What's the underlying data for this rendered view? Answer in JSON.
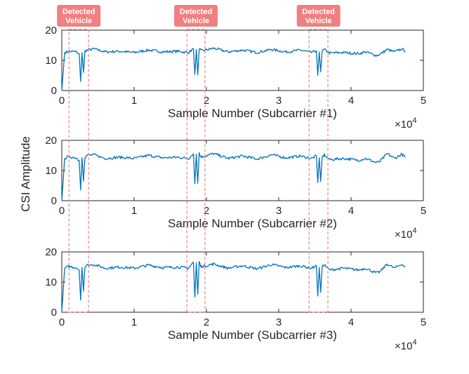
{
  "figure": {
    "ylabel": "CSI Amplitude",
    "multiplier_base": "×10",
    "multiplier_exp": "4",
    "annotation_label_line1": "Detected",
    "annotation_label_line2": "Vehicle"
  },
  "colors": {
    "series": "#0072BD",
    "annotation": "#F08080",
    "axis": "#262626"
  },
  "chart_data": [
    {
      "type": "line",
      "xlabel": "Sample Number (Subcarrier #1)",
      "ylabel": "CSI Amplitude",
      "xlim": [
        0,
        50000
      ],
      "ylim": [
        0,
        20
      ],
      "x_ticks": [
        0,
        10000,
        20000,
        30000,
        40000,
        50000
      ],
      "x_tick_labels": [
        "0",
        "1",
        "2",
        "3",
        "4",
        "5"
      ],
      "y_ticks": [
        0,
        10,
        20
      ],
      "y_tick_labels": [
        "0",
        "10",
        "20"
      ],
      "x_multiplier": "×10^4",
      "series": [
        {
          "baseline": 13.0,
          "x": [
            0,
            400,
            1000,
            2000,
            2400,
            2600,
            2800,
            3000,
            3200,
            3500,
            4500,
            6000,
            8000,
            10000,
            12000,
            14000,
            16000,
            17500,
            18200,
            18400,
            18600,
            18800,
            19000,
            19200,
            19500,
            21000,
            23000,
            25000,
            27000,
            29000,
            31000,
            33000,
            34500,
            35200,
            35400,
            35600,
            35800,
            36000,
            36300,
            37000,
            39000,
            41000,
            42000,
            43500,
            44000,
            45000,
            46000,
            47000,
            47500
          ],
          "y": [
            0,
            12.6,
            13.0,
            12.8,
            12.2,
            3.0,
            12.5,
            6.0,
            13.0,
            13.4,
            13.8,
            12.8,
            13.0,
            12.6,
            13.4,
            12.8,
            13.0,
            12.6,
            13.8,
            5.4,
            13.6,
            5.2,
            14.0,
            13.2,
            13.2,
            14.0,
            12.8,
            13.4,
            12.6,
            13.6,
            12.8,
            13.4,
            12.6,
            13.2,
            5.0,
            12.8,
            6.2,
            13.0,
            13.6,
            12.4,
            12.6,
            12.2,
            12.8,
            11.6,
            12.0,
            13.6,
            12.8,
            13.8,
            13.0
          ]
        }
      ]
    },
    {
      "type": "line",
      "xlabel": "Sample Number (Subcarrier #2)",
      "ylabel": "",
      "xlim": [
        0,
        50000
      ],
      "ylim": [
        0,
        20
      ],
      "x_ticks": [
        0,
        10000,
        20000,
        30000,
        40000,
        50000
      ],
      "x_tick_labels": [
        "0",
        "1",
        "2",
        "3",
        "4",
        "5"
      ],
      "y_ticks": [
        0,
        10,
        20
      ],
      "y_tick_labels": [
        "0",
        "10",
        "20"
      ],
      "x_multiplier": "×10^4",
      "series": [
        {
          "baseline": 14.5,
          "x": [
            0,
            400,
            1000,
            2000,
            2400,
            2600,
            2800,
            3000,
            3200,
            3500,
            4500,
            6000,
            8000,
            10000,
            12000,
            14000,
            16000,
            17500,
            18200,
            18400,
            18600,
            18800,
            19000,
            19200,
            19500,
            21000,
            23000,
            25000,
            27000,
            29000,
            31000,
            33000,
            34500,
            35200,
            35400,
            35600,
            35800,
            36000,
            36300,
            37000,
            39000,
            41000,
            42000,
            43500,
            44000,
            45000,
            46000,
            47000,
            47500
          ],
          "y": [
            0,
            14.0,
            14.6,
            14.2,
            13.4,
            3.5,
            14.2,
            6.5,
            14.6,
            15.0,
            15.2,
            14.0,
            14.4,
            14.0,
            15.0,
            14.2,
            14.4,
            14.0,
            15.6,
            5.6,
            15.4,
            5.8,
            15.8,
            14.6,
            14.6,
            15.6,
            14.0,
            14.8,
            13.8,
            15.2,
            14.2,
            14.8,
            14.0,
            14.8,
            6.0,
            14.2,
            6.4,
            14.4,
            15.2,
            13.6,
            14.0,
            13.4,
            14.0,
            12.6,
            13.0,
            15.6,
            14.0,
            15.4,
            14.4
          ]
        }
      ]
    },
    {
      "type": "line",
      "xlabel": "Sample Number (Subcarrier #3)",
      "ylabel": "",
      "xlim": [
        0,
        50000
      ],
      "ylim": [
        0,
        20
      ],
      "x_ticks": [
        0,
        10000,
        20000,
        30000,
        40000,
        50000
      ],
      "x_tick_labels": [
        "0",
        "1",
        "2",
        "3",
        "4",
        "5"
      ],
      "y_ticks": [
        0,
        10,
        20
      ],
      "y_tick_labels": [
        "0",
        "10",
        "20"
      ],
      "x_multiplier": "×10^4",
      "series": [
        {
          "baseline": 15.0,
          "x": [
            0,
            400,
            1000,
            2000,
            2400,
            2600,
            2800,
            3000,
            3200,
            3500,
            4500,
            6000,
            8000,
            10000,
            12000,
            14000,
            16000,
            17500,
            18200,
            18400,
            18600,
            18800,
            19000,
            19200,
            19500,
            21000,
            23000,
            25000,
            27000,
            29000,
            31000,
            33000,
            34500,
            35200,
            35400,
            35600,
            35800,
            36000,
            36300,
            37000,
            39000,
            41000,
            42000,
            43500,
            44000,
            45000,
            46000,
            47000,
            47500
          ],
          "y": [
            0,
            14.6,
            15.2,
            14.8,
            14.0,
            4.0,
            14.8,
            7.0,
            15.2,
            15.6,
            15.8,
            14.6,
            15.0,
            14.6,
            15.6,
            14.8,
            15.0,
            14.6,
            16.6,
            5.0,
            16.4,
            6.0,
            16.8,
            15.2,
            15.2,
            16.0,
            14.6,
            15.4,
            14.4,
            15.8,
            14.8,
            15.4,
            14.6,
            15.4,
            5.4,
            14.8,
            6.6,
            15.0,
            15.8,
            14.0,
            14.6,
            14.0,
            14.6,
            13.0,
            13.4,
            16.0,
            14.6,
            16.0,
            15.0
          ]
        }
      ]
    }
  ],
  "annotations": [
    {
      "label": "Detected Vehicle",
      "x_start": 1000,
      "x_end": 3700
    },
    {
      "label": "Detected Vehicle",
      "x_start": 17300,
      "x_end": 19800
    },
    {
      "label": "Detected Vehicle",
      "x_start": 34200,
      "x_end": 36800
    }
  ]
}
